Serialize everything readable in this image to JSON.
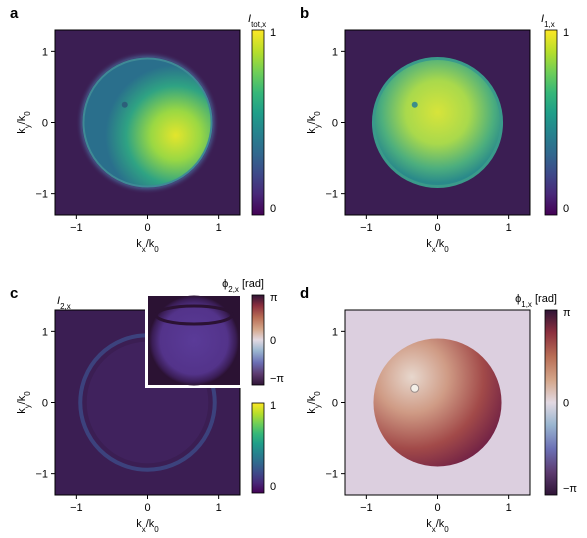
{
  "figure": {
    "colors": {
      "viridis": [
        "#440154",
        "#482878",
        "#3e4989",
        "#31688e",
        "#26828e",
        "#1f9e89",
        "#35b779",
        "#6ece58",
        "#b5de2b",
        "#fde725"
      ],
      "twilight": [
        "#2f1436",
        "#5c3a6e",
        "#6c70b5",
        "#9ab6d0",
        "#e2d9e2",
        "#d4a68a",
        "#b86d55",
        "#8b2f3e",
        "#2f1436"
      ],
      "background_dark": "#3b1e53",
      "background_light": "#dccfdf"
    },
    "panels": [
      {
        "label": "a",
        "xlabel_main": "k",
        "xlabel_sub1": "x",
        "xlabel_mid": "/k",
        "xlabel_sub2": "0",
        "ylabel_main": "k",
        "ylabel_sub1": "y",
        "ylabel_mid": "/k",
        "ylabel_sub2": "0",
        "xticks": [
          "−1",
          "0",
          "1"
        ],
        "yticks": [
          "1",
          "0",
          "−1"
        ],
        "colorbar_title_main": "I",
        "colorbar_title_sub": "tot,x",
        "colorbar_ticks": [
          "1",
          "0"
        ],
        "colormap": "viridis"
      },
      {
        "label": "b",
        "xlabel_main": "k",
        "xlabel_sub1": "x",
        "xlabel_mid": "/k",
        "xlabel_sub2": "0",
        "ylabel_main": "k",
        "ylabel_sub1": "y",
        "ylabel_mid": "/k",
        "ylabel_sub2": "0",
        "xticks": [
          "−1",
          "0",
          "1"
        ],
        "yticks": [
          "1",
          "0",
          "−1"
        ],
        "colorbar_title_main": "I",
        "colorbar_title_sub": "1,x",
        "colorbar_ticks": [
          "1",
          "0"
        ],
        "colormap": "viridis"
      },
      {
        "label": "c",
        "xlabel_main": "k",
        "xlabel_sub1": "x",
        "xlabel_mid": "/k",
        "xlabel_sub2": "0",
        "ylabel_main": "k",
        "ylabel_sub1": "y",
        "ylabel_mid": "/k",
        "ylabel_sub2": "0",
        "xticks": [
          "−1",
          "0",
          "1"
        ],
        "yticks": [
          "1",
          "0",
          "−1"
        ],
        "inner_title_main": "I",
        "inner_title_sub": "2,x",
        "phase_title_main": "ϕ",
        "phase_title_sub": "2,x",
        "phase_title_unit": " [rad]",
        "phase_ticks": [
          "π",
          "0",
          "−π"
        ],
        "colorbar_ticks": [
          "1",
          "0"
        ],
        "colormap": "viridis"
      },
      {
        "label": "d",
        "xlabel_main": "k",
        "xlabel_sub1": "x",
        "xlabel_mid": "/k",
        "xlabel_sub2": "0",
        "ylabel_main": "k",
        "ylabel_sub1": "y",
        "ylabel_mid": "/k",
        "ylabel_sub2": "0",
        "xticks": [
          "−1",
          "0",
          "1"
        ],
        "yticks": [
          "1",
          "0",
          "−1"
        ],
        "colorbar_title_main": "ϕ",
        "colorbar_title_sub": "1,x",
        "colorbar_title_unit": " [rad]",
        "colorbar_ticks": [
          "π",
          "0",
          "−π"
        ],
        "colormap": "twilight"
      }
    ]
  },
  "chart_data": [
    {
      "type": "heatmap",
      "panel": "a",
      "xlim": [
        -1.3,
        1.3
      ],
      "ylim": [
        -1.3,
        1.3
      ],
      "xticks": [
        -1,
        0,
        1
      ],
      "yticks": [
        1,
        0,
        -1
      ],
      "colorbar_range": [
        0,
        1
      ],
      "colormap": "viridis"
    },
    {
      "type": "heatmap",
      "panel": "b",
      "xlim": [
        -1.3,
        1.3
      ],
      "ylim": [
        -1.3,
        1.3
      ],
      "xticks": [
        -1,
        0,
        1
      ],
      "yticks": [
        1,
        0,
        -1
      ],
      "colorbar_range": [
        0,
        1
      ],
      "colormap": "viridis"
    },
    {
      "type": "heatmap",
      "panel": "c",
      "xlim": [
        -1.3,
        1.3
      ],
      "ylim": [
        -1.3,
        1.3
      ],
      "xticks": [
        -1,
        0,
        1
      ],
      "yticks": [
        1,
        0,
        -1
      ],
      "colorbar_range": [
        0,
        1
      ],
      "phase_colorbar_range": [
        "-π",
        "π"
      ],
      "colormap": "viridis"
    },
    {
      "type": "heatmap",
      "panel": "d",
      "xlim": [
        -1.3,
        1.3
      ],
      "ylim": [
        -1.3,
        1.3
      ],
      "xticks": [
        -1,
        0,
        1
      ],
      "yticks": [
        1,
        0,
        -1
      ],
      "colorbar_range": [
        "-π",
        "π"
      ],
      "colormap": "twilight"
    }
  ]
}
